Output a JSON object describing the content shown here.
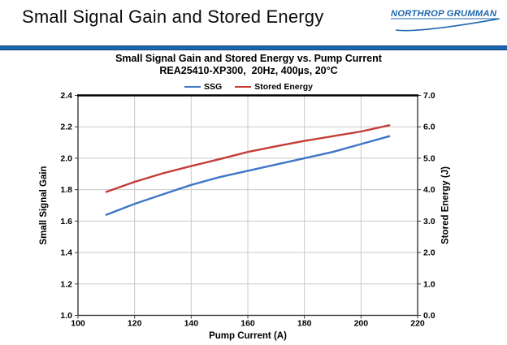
{
  "slide": {
    "title": "Small Signal Gain and Stored Energy",
    "logo_text": "NORTHROP GRUMMAN",
    "logo_color": "#1E66AF",
    "accent_bar_color": "#1B67B3"
  },
  "chart_data": {
    "type": "line",
    "title": "Small Signal Gain and Stored Energy vs. Pump Current",
    "subtitle": "REA25410-XP300,  20Hz, 400µs, 20°C",
    "xlabel": "Pump Current (A)",
    "ylabel_left": "Small Signal Gain",
    "ylabel_right": "Stored Energy (J)",
    "xlim": [
      100,
      220
    ],
    "xtick_step": 20,
    "ylim_left": [
      1.0,
      2.4
    ],
    "ytick_step_left": 0.2,
    "ylim_right": [
      0.0,
      7.0
    ],
    "ytick_step_right": 1.0,
    "grid": true,
    "legend_position": "top",
    "grid_color": "#c9c9c9",
    "border_color": "#3a3a3a",
    "x": [
      110,
      120,
      130,
      140,
      150,
      160,
      170,
      180,
      190,
      200,
      210
    ],
    "series": [
      {
        "name": "SSG",
        "axis": "left",
        "color": "#3E76C6",
        "values": [
          1.64,
          1.71,
          1.77,
          1.83,
          1.88,
          1.92,
          1.96,
          2.0,
          2.04,
          2.09,
          2.14
        ]
      },
      {
        "name": "Stored Energy",
        "axis": "right",
        "color": "#C33D36",
        "values": [
          3.93,
          4.25,
          4.52,
          4.75,
          4.97,
          5.2,
          5.38,
          5.55,
          5.7,
          5.85,
          6.05
        ]
      }
    ]
  }
}
